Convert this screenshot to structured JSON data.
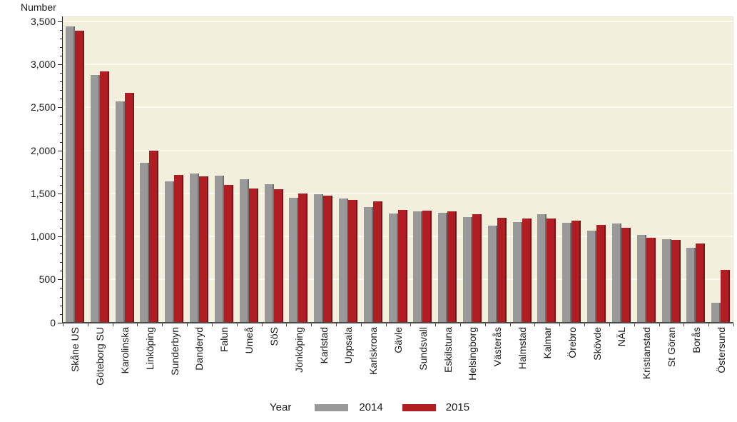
{
  "axis_title": "Number",
  "legend": {
    "title": "Year",
    "items": [
      {
        "label": "2014",
        "color": "#999999",
        "edge_color": "#6f6f6f"
      },
      {
        "label": "2015",
        "color": "#b01e23",
        "edge_color": "#7d1316"
      }
    ]
  },
  "colors": {
    "plot_background": "#f2efdc",
    "gridline": "#fbf9ee",
    "y_axis": "#222222",
    "x_axis": "#4b4b4b",
    "text": "#1a1a1a"
  },
  "chart_data": {
    "type": "bar",
    "title": "",
    "xlabel": "",
    "ylabel": "Number",
    "legend_title": "Year",
    "legend_position": "bottom",
    "grid": true,
    "ylim": [
      0,
      3500
    ],
    "ytick_step": 500,
    "yminor_tick_step": 100,
    "yticks": [
      "0",
      "500",
      "1,000",
      "1,500",
      "2,000",
      "2,500",
      "3,000",
      "3,500"
    ],
    "categories": [
      "Skåne US",
      "Göteborg SU",
      "Karolinska",
      "Linköping",
      "Sunderbyn",
      "Danderyd",
      "Falun",
      "Umeå",
      "SöS",
      "Jönköping",
      "Karlstad",
      "Uppsala",
      "Karlskrona",
      "Gävle",
      "Sundsvall",
      "Eskilstuna",
      "Helsingborg",
      "Västerås",
      "Halmstad",
      "Kalmar",
      "Örebro",
      "Skövde",
      "NÄL",
      "Kristianstad",
      "St Göran",
      "Borås",
      "Östersund"
    ],
    "series": [
      {
        "name": "2014",
        "color": "#999999",
        "edge_color": "#6f6f6f",
        "values": [
          3440,
          2880,
          2570,
          1860,
          1640,
          1730,
          1710,
          1670,
          1610,
          1450,
          1490,
          1440,
          1340,
          1270,
          1290,
          1280,
          1230,
          1130,
          1170,
          1260,
          1160,
          1070,
          1150,
          1020,
          970,
          870,
          230
        ]
      },
      {
        "name": "2015",
        "color": "#b01e23",
        "edge_color": "#7d1316",
        "values": [
          3390,
          2920,
          2670,
          2000,
          1720,
          1700,
          1600,
          1560,
          1550,
          1500,
          1480,
          1430,
          1410,
          1310,
          1300,
          1290,
          1260,
          1220,
          1210,
          1210,
          1190,
          1140,
          1100,
          990,
          960,
          920,
          610
        ]
      }
    ]
  }
}
